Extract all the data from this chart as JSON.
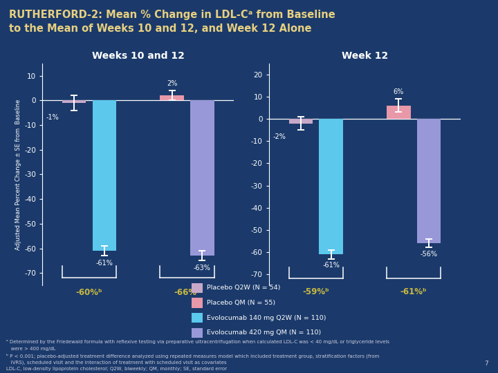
{
  "title_line1": "RUTHERFORD-2: Mean % Change in LDL-Cᵃ from Baseline",
  "title_line2": "to the Mean of Weeks 10 and 12, and Week 12 Alone",
  "title_color": "#E8D080",
  "bg_color": "#1B3A6B",
  "gold_line_color": "#B8A040",
  "subtitle_left": "Weeks 10 and 12",
  "subtitle_right": "Week 12",
  "subtitle_color": "#FFFFFF",
  "ylabel": "Adjusted Mean Percent Change ± SE from  Baseline",
  "groups_left": [
    {
      "bars": [
        {
          "value": -1,
          "color": "#C8A8C8",
          "error": 3,
          "pct_label": "-1%",
          "label_side": "left"
        },
        {
          "value": -61,
          "color": "#5BC8EC",
          "error": 2,
          "pct_label": "-61%",
          "label_side": "bottom"
        }
      ],
      "diff_label": "-60%ᵇ"
    },
    {
      "bars": [
        {
          "value": 2,
          "color": "#E898A8",
          "error": 2,
          "pct_label": "2%",
          "label_side": "top"
        },
        {
          "value": -63,
          "color": "#9898D8",
          "error": 2,
          "pct_label": "-63%",
          "label_side": "bottom"
        }
      ],
      "diff_label": "-66%ᵇ"
    }
  ],
  "groups_right": [
    {
      "bars": [
        {
          "value": -2,
          "color": "#C8A8C8",
          "error": 3,
          "pct_label": "-2%",
          "label_side": "left"
        },
        {
          "value": -61,
          "color": "#5BC8EC",
          "error": 2,
          "pct_label": "-61%",
          "label_side": "bottom"
        }
      ],
      "diff_label": "-59%ᵇ"
    },
    {
      "bars": [
        {
          "value": 6,
          "color": "#E898A8",
          "error": 3,
          "pct_label": "6%",
          "label_side": "top"
        },
        {
          "value": -56,
          "color": "#9898D8",
          "error": 2,
          "pct_label": "-56%",
          "label_side": "bottom"
        }
      ],
      "diff_label": "-61%ᵇ"
    }
  ],
  "ylim_left": [
    -75,
    15
  ],
  "ylim_right": [
    -75,
    25
  ],
  "yticks_left": [
    10,
    0,
    -10,
    -20,
    -30,
    -40,
    -50,
    -60,
    -70
  ],
  "yticks_right": [
    20,
    10,
    0,
    -10,
    -20,
    -30,
    -40,
    -50,
    -60,
    -70
  ],
  "legend_entries": [
    {
      "label": "Placebo Q2W (N = 54)",
      "color": "#C8A8C8"
    },
    {
      "label": "Placebo QM (N = 55)",
      "color": "#E898A8"
    },
    {
      "label": "Evolocumab 140 mg Q2W (N = 110)",
      "color": "#5BC8EC"
    },
    {
      "label": "Evolocumab 420 mg QM (N = 110)",
      "color": "#9898D8"
    }
  ],
  "fn1": "ᵃ Determined by the Friedewald formula with reflexive testing via preparative ultracentrifugation when calculated LDL-C was < 40 mg/dL or triglyceride levels",
  "fn2": "   were > 400 mg/dL",
  "fn3": "ᵇ P < 0.001; placebo-adjusted treatment difference analyzed using repeated measures model which included treatment group, stratification factors (from",
  "fn4": "   IVRS), scheduled visit and the interaction of treatment with scheduled visit as covariates",
  "fn5": "LDL-C, low-density lipoprotein cholesterol; Q2W, biweekly; QM, monthly; SE, standard error",
  "fn_page": "7",
  "white": "#FFFFFF",
  "gold": "#C8B840",
  "footnote_color": "#CCCCDD"
}
